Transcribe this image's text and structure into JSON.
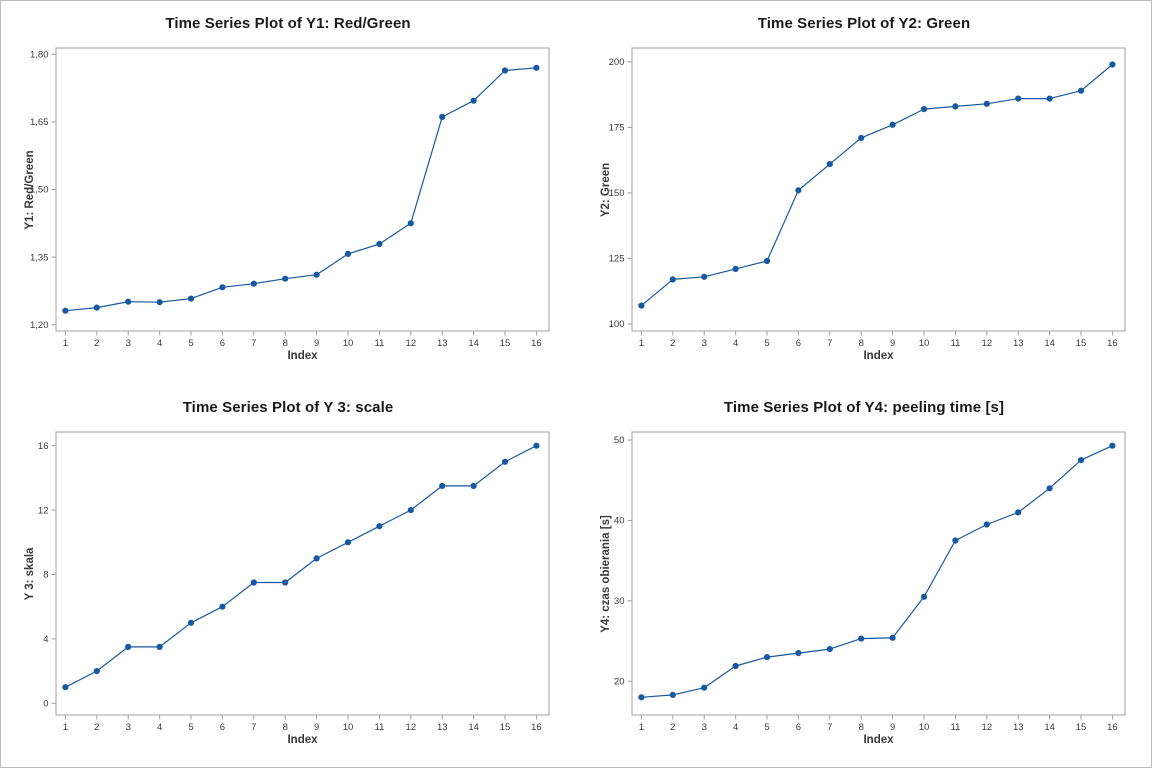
{
  "page": {
    "background": "#ffffff",
    "border_color": "#bdbdbd"
  },
  "style": {
    "series_color": "#1759a0",
    "frame_color": "#a0a0a0",
    "tick_text_color": "#3a3a3a",
    "title_color": "#1a1a1a"
  },
  "chart_data": [
    {
      "type": "line",
      "title": "Time Series Plot of Y1: Red/Green",
      "xlabel": "Index",
      "ylabel": "Y1: Red/Green",
      "x": [
        1,
        2,
        3,
        4,
        5,
        6,
        7,
        8,
        9,
        10,
        11,
        12,
        13,
        14,
        15,
        16
      ],
      "values": [
        1.231,
        1.238,
        1.251,
        1.25,
        1.258,
        1.283,
        1.291,
        1.302,
        1.311,
        1.357,
        1.379,
        1.425,
        1.661,
        1.697,
        1.764,
        1.77
      ],
      "ytick_values": [
        1.2,
        1.35,
        1.5,
        1.65,
        1.8
      ],
      "ytick_labels": [
        "1,20",
        "1,35",
        "1,50",
        "1,65",
        "1,80"
      ],
      "xtick_values": [
        1,
        2,
        3,
        4,
        5,
        6,
        7,
        8,
        9,
        10,
        11,
        12,
        13,
        14,
        15,
        16
      ],
      "xtick_labels": [
        "1",
        "2",
        "3",
        "4",
        "5",
        "6",
        "7",
        "8",
        "9",
        "10",
        "11",
        "12",
        "13",
        "14",
        "15",
        "16"
      ],
      "ylim": [
        1.186,
        1.814
      ],
      "xlim": [
        0.7,
        16.4
      ],
      "grid": false,
      "legend": "none",
      "marker": "circle"
    },
    {
      "type": "line",
      "title": "Time Series Plot of Y2: Green",
      "xlabel": "Index",
      "ylabel": "Y2: Green",
      "x": [
        1,
        2,
        3,
        4,
        5,
        6,
        7,
        8,
        9,
        10,
        11,
        12,
        13,
        14,
        15,
        16
      ],
      "values": [
        107,
        117,
        118,
        121,
        124,
        151,
        161,
        171,
        176,
        182,
        183,
        184,
        186,
        186,
        189,
        199
      ],
      "ytick_values": [
        100,
        125,
        150,
        175,
        200
      ],
      "ytick_labels": [
        "100",
        "125",
        "150",
        "175",
        "200"
      ],
      "xtick_values": [
        1,
        2,
        3,
        4,
        5,
        6,
        7,
        8,
        9,
        10,
        11,
        12,
        13,
        14,
        15,
        16
      ],
      "xtick_labels": [
        "1",
        "2",
        "3",
        "4",
        "5",
        "6",
        "7",
        "8",
        "9",
        "10",
        "11",
        "12",
        "13",
        "14",
        "15",
        "16"
      ],
      "ylim": [
        97.3,
        205.3
      ],
      "xlim": [
        0.7,
        16.4
      ],
      "grid": false,
      "legend": "none",
      "marker": "circle"
    },
    {
      "type": "line",
      "title": "Time Series Plot of Y 3: scale",
      "xlabel": "Index",
      "ylabel": "Y 3: skala",
      "x": [
        1,
        2,
        3,
        4,
        5,
        6,
        7,
        8,
        9,
        10,
        11,
        12,
        13,
        14,
        15,
        16
      ],
      "values": [
        1,
        2,
        3.5,
        3.5,
        5,
        6,
        7.5,
        7.5,
        9,
        10,
        11,
        12,
        13.5,
        13.5,
        15,
        16
      ],
      "ytick_values": [
        0,
        4,
        8,
        12,
        16
      ],
      "ytick_labels": [
        "0",
        "4",
        "8",
        "12",
        "16"
      ],
      "xtick_values": [
        1,
        2,
        3,
        4,
        5,
        6,
        7,
        8,
        9,
        10,
        11,
        12,
        13,
        14,
        15,
        16
      ],
      "xtick_labels": [
        "1",
        "2",
        "3",
        "4",
        "5",
        "6",
        "7",
        "8",
        "9",
        "10",
        "11",
        "12",
        "13",
        "14",
        "15",
        "16"
      ],
      "ylim": [
        -0.73,
        16.85
      ],
      "xlim": [
        0.7,
        16.4
      ],
      "grid": false,
      "legend": "none",
      "marker": "circle"
    },
    {
      "type": "line",
      "title": "Time Series Plot of Y4: peeling time [s]",
      "xlabel": "Index",
      "ylabel": "Y4: czas obierania [s]",
      "x": [
        1,
        2,
        3,
        4,
        5,
        6,
        7,
        8,
        9,
        10,
        11,
        12,
        13,
        14,
        15,
        16
      ],
      "values": [
        18,
        18.3,
        19.2,
        21.9,
        23,
        23.5,
        24,
        25.3,
        25.4,
        30.5,
        37.5,
        39.5,
        41,
        44,
        47.5,
        49.3
      ],
      "ytick_values": [
        20,
        30,
        40,
        50
      ],
      "ytick_labels": [
        "20",
        "30",
        "40",
        "50"
      ],
      "xtick_values": [
        1,
        2,
        3,
        4,
        5,
        6,
        7,
        8,
        9,
        10,
        11,
        12,
        13,
        14,
        15,
        16
      ],
      "xtick_labels": [
        "1",
        "2",
        "3",
        "4",
        "5",
        "6",
        "7",
        "8",
        "9",
        "10",
        "11",
        "12",
        "13",
        "14",
        "15",
        "16"
      ],
      "ylim": [
        15.8,
        51.0
      ],
      "xlim": [
        0.7,
        16.4
      ],
      "grid": false,
      "legend": "none",
      "marker": "circle"
    }
  ]
}
